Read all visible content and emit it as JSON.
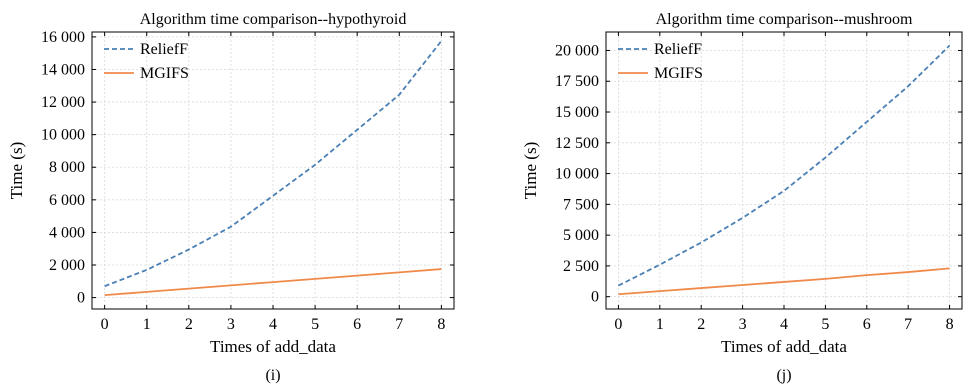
{
  "chart_data": [
    {
      "type": "line",
      "title": "Algorithm time comparison--hypothyroid",
      "xlabel": "Times of add_data",
      "ylabel": "Time (s)",
      "caption": "(i)",
      "x": [
        0,
        1,
        2,
        3,
        4,
        5,
        6,
        7,
        8
      ],
      "xlim": [
        -0.3,
        8.3
      ],
      "ylim": [
        -700,
        16300
      ],
      "xticks": [
        0,
        1,
        2,
        3,
        4,
        5,
        6,
        7,
        8
      ],
      "yticks": [
        0,
        2000,
        4000,
        6000,
        8000,
        10000,
        12000,
        14000,
        16000
      ],
      "ytick_labels": [
        "0",
        "2 000",
        "4 000",
        "6 000",
        "8 000",
        "10 000",
        "12 000",
        "14 000",
        "16 000"
      ],
      "grid": true,
      "legend_position": "top-left",
      "series": [
        {
          "name": "ReliefF",
          "color": "#4a7fb5",
          "style": "dashed",
          "values": [
            700,
            1700,
            2950,
            4350,
            6250,
            8150,
            10300,
            12450,
            15750
          ]
        },
        {
          "name": "MGIFS",
          "color": "#f08a4b",
          "style": "solid",
          "values": [
            150,
            350,
            550,
            750,
            950,
            1150,
            1350,
            1550,
            1750
          ]
        }
      ]
    },
    {
      "type": "line",
      "title": "Algorithm time comparison--mushroom",
      "xlabel": "Times of add_data",
      "ylabel": "Time (s)",
      "caption": "(j)",
      "x": [
        0,
        1,
        2,
        3,
        4,
        5,
        6,
        7,
        8
      ],
      "xlim": [
        -0.3,
        8.3
      ],
      "ylim": [
        -1000,
        21500
      ],
      "xticks": [
        0,
        1,
        2,
        3,
        4,
        5,
        6,
        7,
        8
      ],
      "yticks": [
        0,
        2500,
        5000,
        7500,
        10000,
        12500,
        15000,
        17500,
        20000
      ],
      "ytick_labels": [
        "0",
        "2 500",
        "5 000",
        "7 500",
        "10 000",
        "12 500",
        "15 000",
        "17 500",
        "20 000"
      ],
      "grid": true,
      "legend_position": "top-left",
      "series": [
        {
          "name": "ReliefF",
          "color": "#4a7fb5",
          "style": "dashed",
          "values": [
            900,
            2600,
            4400,
            6400,
            8600,
            11300,
            14200,
            17100,
            20400
          ]
        },
        {
          "name": "MGIFS",
          "color": "#f08a4b",
          "style": "solid",
          "values": [
            200,
            450,
            700,
            950,
            1200,
            1450,
            1750,
            2000,
            2300
          ]
        }
      ]
    }
  ]
}
